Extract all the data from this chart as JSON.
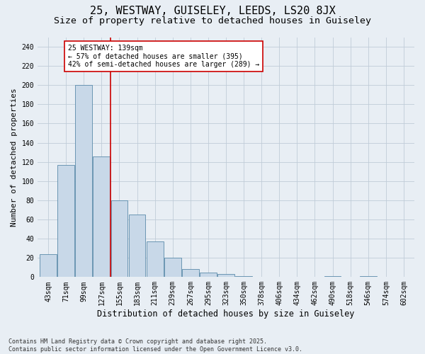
{
  "title1": "25, WESTWAY, GUISELEY, LEEDS, LS20 8JX",
  "title2": "Size of property relative to detached houses in Guiseley",
  "xlabel": "Distribution of detached houses by size in Guiseley",
  "ylabel": "Number of detached properties",
  "categories": [
    "43sqm",
    "71sqm",
    "99sqm",
    "127sqm",
    "155sqm",
    "183sqm",
    "211sqm",
    "239sqm",
    "267sqm",
    "295sqm",
    "323sqm",
    "350sqm",
    "378sqm",
    "406sqm",
    "434sqm",
    "462sqm",
    "490sqm",
    "518sqm",
    "546sqm",
    "574sqm",
    "602sqm"
  ],
  "values": [
    24,
    117,
    200,
    126,
    80,
    65,
    37,
    20,
    8,
    5,
    3,
    1,
    0,
    0,
    0,
    0,
    1,
    0,
    1,
    0,
    0
  ],
  "bar_color": "#c8d8e8",
  "bar_edge_color": "#5a8aaa",
  "grid_color": "#c0ccd8",
  "background_color": "#e8eef4",
  "vline_x": 3.5,
  "vline_color": "#cc0000",
  "annotation_text": "25 WESTWAY: 139sqm\n← 57% of detached houses are smaller (395)\n42% of semi-detached houses are larger (289) →",
  "annotation_box_color": "#ffffff",
  "annotation_box_edge": "#cc0000",
  "ylim": [
    0,
    250
  ],
  "yticks": [
    0,
    20,
    40,
    60,
    80,
    100,
    120,
    140,
    160,
    180,
    200,
    220,
    240
  ],
  "footer": "Contains HM Land Registry data © Crown copyright and database right 2025.\nContains public sector information licensed under the Open Government Licence v3.0.",
  "title1_fontsize": 11,
  "title2_fontsize": 9.5,
  "xlabel_fontsize": 8.5,
  "ylabel_fontsize": 8,
  "tick_fontsize": 7,
  "annot_fontsize": 7,
  "footer_fontsize": 6
}
